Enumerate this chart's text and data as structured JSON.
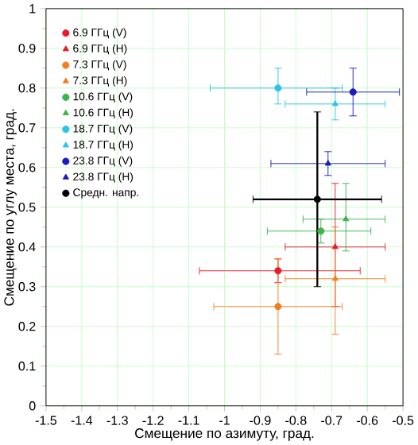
{
  "chart_data": {
    "type": "scatter",
    "xlabel": "Смещение по азимуту, град.",
    "ylabel": "Смещение по углу места, град.",
    "xlim": [
      -1.5,
      -0.5
    ],
    "ylim": [
      0,
      1
    ],
    "xticks": [
      -1.5,
      -1.4,
      -1.3,
      -1.2,
      -1.1,
      -1,
      -0.9,
      -0.8,
      -0.7,
      -0.6,
      -0.5
    ],
    "yticks": [
      0,
      0.1,
      0.2,
      0.3,
      0.4,
      0.5,
      0.6,
      0.7,
      0.8,
      0.9,
      1
    ],
    "grid": true,
    "legend": "top left",
    "series": [
      {
        "name": "6.9 ГГц (V)",
        "color": "#e8192c",
        "marker": "circle",
        "x": [
          -0.85
        ],
        "values": [
          0.34
        ],
        "errors": [
          [
            0.31,
            0.37
          ]
        ],
        "xerrors": [
          [
            -1.07,
            -0.62
          ]
        ]
      },
      {
        "name": "6.9 ГГц (H)",
        "color": "#e8192c",
        "marker": "triangle",
        "x": [
          -0.69
        ],
        "values": [
          0.4
        ],
        "errors": [
          [
            0.25,
            0.56
          ]
        ],
        "xerrors": [
          [
            -0.83,
            -0.55
          ]
        ]
      },
      {
        "name": "7.3 ГГц (V)",
        "color": "#f07f1f",
        "marker": "circle",
        "x": [
          -0.85
        ],
        "values": [
          0.25
        ],
        "errors": [
          [
            0.13,
            0.37
          ]
        ],
        "xerrors": [
          [
            -1.03,
            -0.67
          ]
        ]
      },
      {
        "name": "7.3 ГГц (H)",
        "color": "#f07f1f",
        "marker": "triangle",
        "x": [
          -0.69
        ],
        "values": [
          0.32
        ],
        "errors": [
          [
            0.18,
            0.45
          ]
        ],
        "xerrors": [
          [
            -0.83,
            -0.55
          ]
        ]
      },
      {
        "name": "10.6 ГГц (V)",
        "color": "#3cb44b",
        "marker": "circle",
        "x": [
          -0.73
        ],
        "values": [
          0.44
        ],
        "errors": [
          [
            0.41,
            0.47
          ]
        ],
        "xerrors": [
          [
            -0.88,
            -0.59
          ]
        ]
      },
      {
        "name": "10.6 ГГц (H)",
        "color": "#3cb44b",
        "marker": "triangle",
        "x": [
          -0.66
        ],
        "values": [
          0.47
        ],
        "errors": [
          [
            0.39,
            0.56
          ]
        ],
        "xerrors": [
          [
            -0.78,
            -0.55
          ]
        ]
      },
      {
        "name": "18.7 ГГц (V)",
        "color": "#29c5e6",
        "marker": "circle",
        "x": [
          -0.85
        ],
        "values": [
          0.8
        ],
        "errors": [
          [
            0.76,
            0.85
          ]
        ],
        "xerrors": [
          [
            -1.04,
            -0.67
          ]
        ]
      },
      {
        "name": "18.7 ГГц (H)",
        "color": "#29c5e6",
        "marker": "triangle",
        "x": [
          -0.69
        ],
        "values": [
          0.76
        ],
        "errors": [
          [
            0.72,
            0.8
          ]
        ],
        "xerrors": [
          [
            -0.83,
            -0.55
          ]
        ]
      },
      {
        "name": "23.8 ГГц (V)",
        "color": "#1a1abf",
        "marker": "circle",
        "x": [
          -0.64
        ],
        "values": [
          0.79
        ],
        "errors": [
          [
            0.73,
            0.85
          ]
        ],
        "xerrors": [
          [
            -0.77,
            -0.51
          ]
        ]
      },
      {
        "name": "23.8 ГГц (H)",
        "color": "#1a1abf",
        "marker": "triangle",
        "x": [
          -0.71
        ],
        "values": [
          0.61
        ],
        "errors": [
          [
            0.58,
            0.64
          ]
        ],
        "xerrors": [
          [
            -0.87,
            -0.55
          ]
        ]
      },
      {
        "name": "Средн. напр.",
        "color": "#000000",
        "marker": "circle",
        "x": [
          -0.74
        ],
        "values": [
          0.52
        ],
        "errors": [
          [
            0.3,
            0.74
          ]
        ],
        "xerrors": [
          [
            -0.92,
            -0.56
          ]
        ]
      }
    ]
  }
}
